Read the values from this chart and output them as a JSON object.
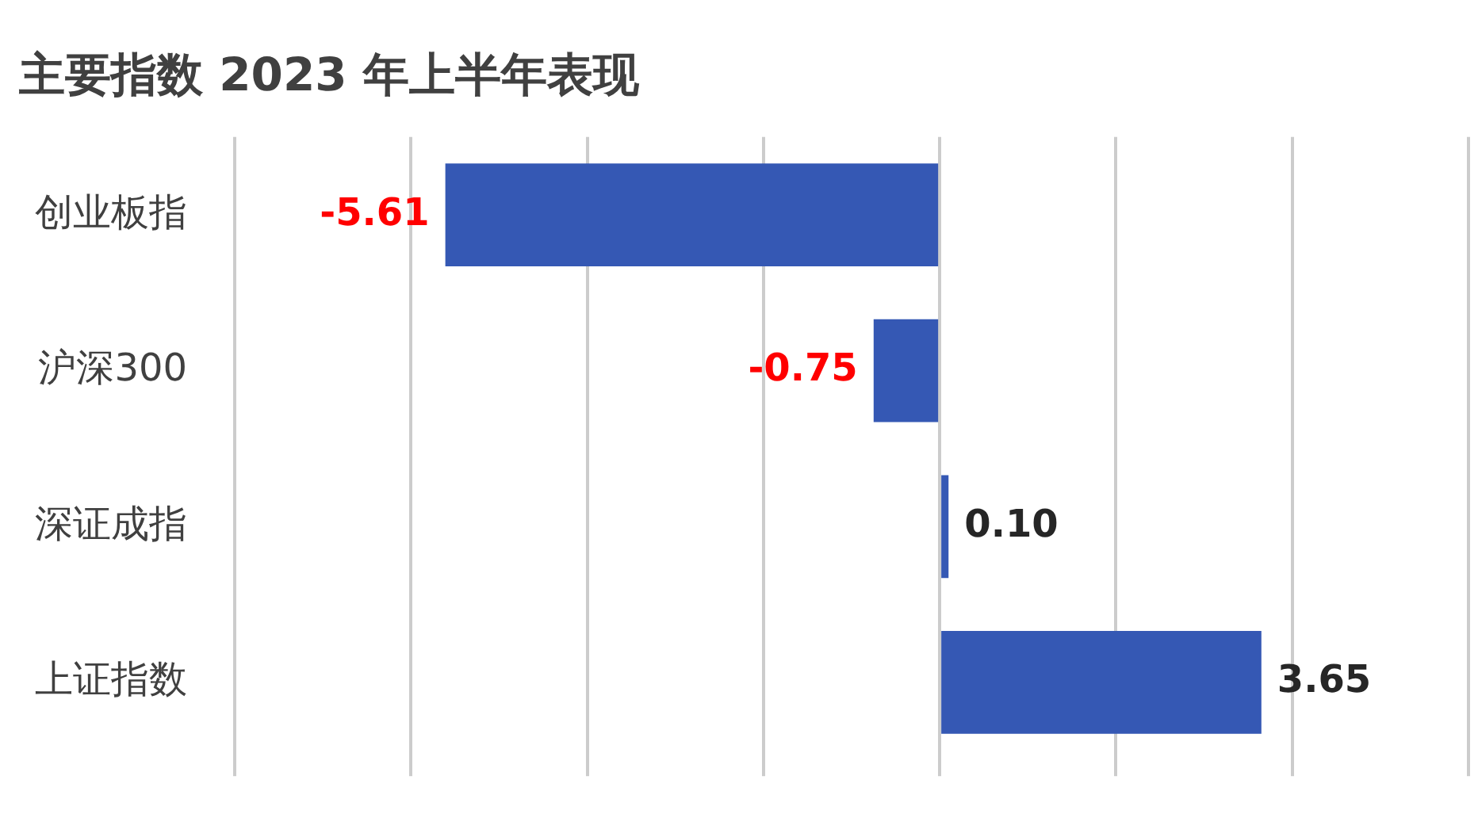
{
  "chart_data": {
    "type": "bar",
    "orientation": "horizontal",
    "title": "主要指数 2023 年上半年表现",
    "categories": [
      "创业板指",
      "沪深300",
      "深证成指",
      "上证指数"
    ],
    "values": [
      -5.61,
      -0.75,
      0.1,
      3.65
    ],
    "color": "#3558b4",
    "xlim": [
      -8,
      6
    ],
    "xticks": [
      {
        "value": -8,
        "label": null
      },
      {
        "value": -6,
        "label": null
      },
      {
        "value": -4,
        "label": null
      },
      {
        "value": -2,
        "label": null
      },
      {
        "value": 0,
        "label": null
      },
      {
        "value": 2,
        "label": null
      },
      {
        "value": 4,
        "label": null
      },
      {
        "value": 6,
        "label": null
      }
    ],
    "value_labels": [
      "-5.61",
      "-0.75",
      "0.10",
      "3.65"
    ],
    "grid": "x",
    "tick_labels": "y"
  }
}
